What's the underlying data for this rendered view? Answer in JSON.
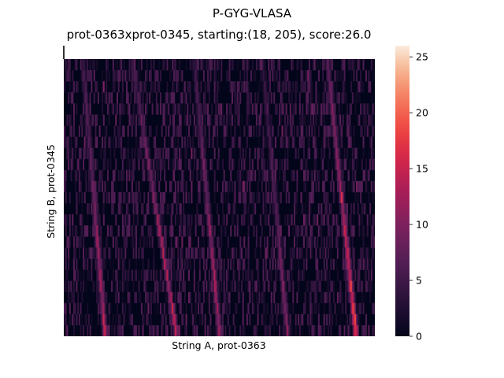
{
  "chart_data": {
    "type": "heatmap",
    "suptitle": "P-GYG-VLASA",
    "title": "prot-0363xprot-0345, starting:(18, 205), score:26.0",
    "xlabel": "String A, prot-0363",
    "ylabel": "String B, prot-0345",
    "colorbar": {
      "min": 0,
      "max": 26,
      "ticks": [
        0,
        5,
        10,
        15,
        20,
        25
      ],
      "colormap": "rocket"
    },
    "grid": {
      "rows": 25,
      "cols": 230,
      "start": [
        18,
        205
      ],
      "max_score": 26.0
    },
    "diagonal_trails": [
      {
        "x_top": 0.06,
        "x_bottom": 0.13,
        "peak": 18
      },
      {
        "x_top": 0.22,
        "x_bottom": 0.36,
        "peak": 20
      },
      {
        "x_top": 0.42,
        "x_bottom": 0.5,
        "peak": 18
      },
      {
        "x_top": 0.64,
        "x_bottom": 0.72,
        "peak": 13
      },
      {
        "x_top": 0.85,
        "x_bottom": 0.94,
        "peak": 26
      }
    ],
    "grid_lines": false,
    "legend": "none"
  }
}
